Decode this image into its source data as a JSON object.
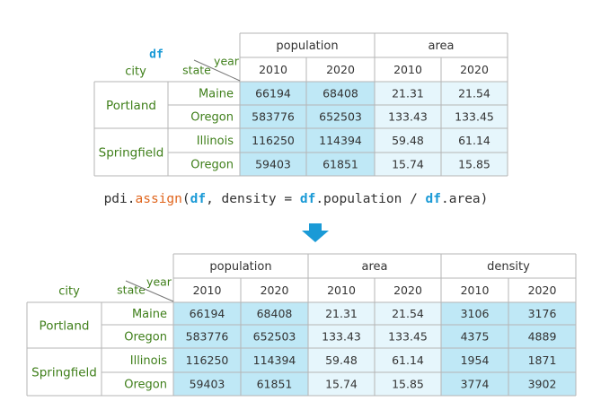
{
  "top": {
    "df_label": "df",
    "city_label": "city",
    "state_label": "state",
    "year_label": "year",
    "groups": [
      "population",
      "area"
    ],
    "years": [
      "2010",
      "2020",
      "2010",
      "2020"
    ],
    "rows": [
      {
        "city": "Portland",
        "state": "Maine",
        "values": [
          "66194",
          "68408",
          "21.31",
          "21.54"
        ]
      },
      {
        "city": "",
        "state": "Oregon",
        "values": [
          "583776",
          "652503",
          "133.43",
          "133.45"
        ]
      },
      {
        "city": "Springfield",
        "state": "Illinois",
        "values": [
          "116250",
          "114394",
          "59.48",
          "61.14"
        ]
      },
      {
        "city": "",
        "state": "Oregon",
        "values": [
          "59403",
          "61851",
          "15.74",
          "15.85"
        ]
      }
    ]
  },
  "code": {
    "prefix": "pdi.",
    "fn": "assign",
    "open": "(",
    "df1": "df",
    "mid": ", density = ",
    "df2": "df",
    "mid2": ".population / ",
    "df3": "df",
    "end": ".area)"
  },
  "bottom": {
    "city_label": "city",
    "state_label": "state",
    "year_label": "year",
    "groups": [
      "population",
      "area",
      "density"
    ],
    "years": [
      "2010",
      "2020",
      "2010",
      "2020",
      "2010",
      "2020"
    ],
    "rows": [
      {
        "city": "Portland",
        "state": "Maine",
        "values": [
          "66194",
          "68408",
          "21.31",
          "21.54",
          "3106",
          "3176"
        ]
      },
      {
        "city": "",
        "state": "Oregon",
        "values": [
          "583776",
          "652503",
          "133.43",
          "133.45",
          "4375",
          "4889"
        ]
      },
      {
        "city": "Springfield",
        "state": "Illinois",
        "values": [
          "116250",
          "114394",
          "59.48",
          "61.14",
          "1954",
          "1871"
        ]
      },
      {
        "city": "",
        "state": "Oregon",
        "values": [
          "59403",
          "61851",
          "15.74",
          "15.85",
          "3774",
          "3902"
        ]
      }
    ]
  },
  "colors": {
    "blue_cell": "#bfe8f6",
    "light_cell": "#e6f6fc",
    "border": "#b5b5b5",
    "green_text": "#3f7f1a",
    "arrow": "#1a9ad6",
    "func": "#e0651d"
  }
}
